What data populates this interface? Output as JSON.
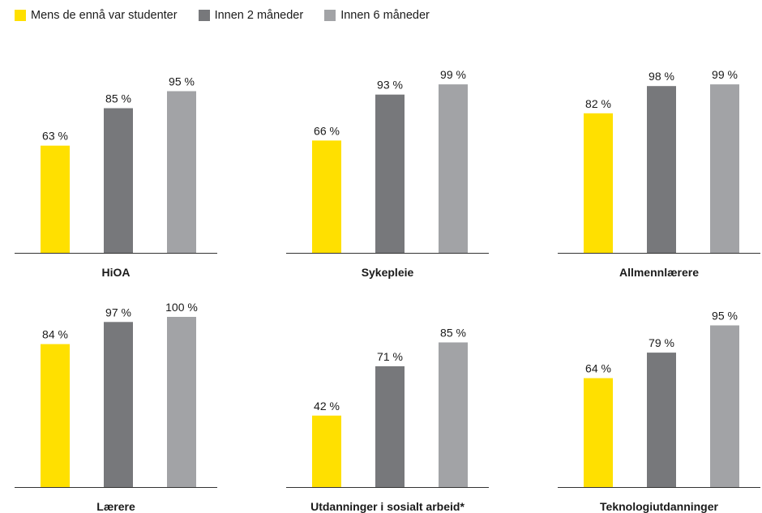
{
  "legend": [
    {
      "label": "Mens de ennå var studenter",
      "color": "#ffe000"
    },
    {
      "label": "Innen 2 måneder",
      "color": "#77787b"
    },
    {
      "label": "Innen 6 måneder",
      "color": "#a2a3a6"
    }
  ],
  "chart_data": {
    "type": "bar",
    "grid": false,
    "legend_position": "top-left",
    "ylim": [
      0,
      100
    ],
    "series_names": [
      "Mens de ennå var studenter",
      "Innen 2 måneder",
      "Innen 6 måneder"
    ],
    "colors": [
      "#ffe000",
      "#77787b",
      "#a2a3a6"
    ],
    "panels": [
      {
        "category": "HiOA",
        "values": [
          63,
          85,
          95
        ],
        "labels": [
          "63 %",
          "85 %",
          "95 %"
        ]
      },
      {
        "category": "Sykepleie",
        "values": [
          66,
          93,
          99
        ],
        "labels": [
          "66 %",
          "93 %",
          "99 %"
        ]
      },
      {
        "category": "Allmennlærere",
        "values": [
          82,
          98,
          99
        ],
        "labels": [
          "82 %",
          "98 %",
          "99 %"
        ]
      },
      {
        "category": "Lærere",
        "values": [
          84,
          97,
          100
        ],
        "labels": [
          "84 %",
          "97 %",
          "100 %"
        ]
      },
      {
        "category": "Utdanninger i sosialt arbeid*",
        "values": [
          42,
          71,
          85
        ],
        "labels": [
          "42 %",
          "71 %",
          "85 %"
        ]
      },
      {
        "category": "Teknologiutdanninger",
        "values": [
          64,
          79,
          95
        ],
        "labels": [
          "64 %",
          "79 %",
          "95 %"
        ]
      }
    ]
  }
}
